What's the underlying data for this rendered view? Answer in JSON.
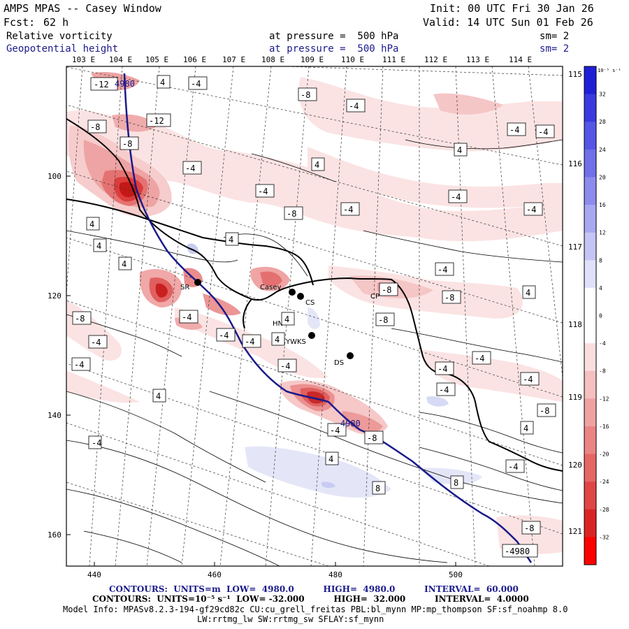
{
  "header": {
    "title": "AMPS MPAS -- Casey Window",
    "init": "Init: 00 UTC Fri 30 Jan 26",
    "fcst_label": "Fcst:",
    "fcst_value": "62 h",
    "valid": "Valid: 14 UTC Sun 01 Feb 26",
    "field1": "Relative vorticity",
    "field1_level": "at pressure =  500 hPa",
    "field1_sm": "sm= 2",
    "field2": "Geopotential height",
    "field2_level": "at pressure =  500 hPa",
    "field2_sm": "sm= 2"
  },
  "map": {
    "lon_labels_top": [
      "103 E",
      "104 E",
      "105 E",
      "106 E",
      "107 E",
      "108 E",
      "109 E",
      "110 E",
      "111 E",
      "112 E",
      "113 E",
      "114 E"
    ],
    "lon_labels_right": [
      "115 E",
      "116 E",
      "117 E",
      "118 E",
      "119 E",
      "120 E",
      "121 E"
    ],
    "y_ticks": [
      "100",
      "120",
      "140",
      "160"
    ],
    "x_ticks": [
      "440",
      "460",
      "480",
      "500"
    ],
    "stations": [
      {
        "id": "SR",
        "label": "SR"
      },
      {
        "id": "Casey",
        "label": "Casey"
      },
      {
        "id": "CS",
        "label": "CS"
      },
      {
        "id": "HN",
        "label": "HN"
      },
      {
        "id": "YWKS",
        "label": "YWKS"
      },
      {
        "id": "DS",
        "label": "DS"
      },
      {
        "id": "CP",
        "label": "CP"
      }
    ],
    "contour_labels": [
      "-12",
      "4980",
      "4",
      "-4",
      "-8",
      "-4",
      "-8",
      "-12",
      "-8",
      "-4",
      "-4",
      "4",
      "-4",
      "4",
      "-4",
      "-8",
      "-4",
      "-4",
      "4",
      "-4",
      "4",
      "4",
      "-4",
      "-8",
      "4",
      "-8",
      "-4",
      "-8",
      "-4",
      "-4",
      "-4",
      "4",
      "-4",
      "-8",
      "-4",
      "-4",
      "-4",
      "4",
      "-4",
      "-4",
      "4",
      "-8",
      "4",
      "4980",
      "-4",
      "-8",
      "4",
      "8",
      "8",
      "-8",
      "-4980",
      "4",
      "-4",
      "-4"
    ]
  },
  "colorbar": {
    "unit_label": "10⁻⁵ s⁻¹",
    "ticks": [
      "32",
      "28",
      "24",
      "20",
      "16",
      "12",
      "8",
      "4",
      "0",
      "-4",
      "-8",
      "-12",
      "-16",
      "-20",
      "-24",
      "-28",
      "-32"
    ],
    "colors": [
      "#1f1fd8",
      "#3a3ae0",
      "#5555e6",
      "#7070ea",
      "#8c8cee",
      "#a8a8f2",
      "#c4c4f6",
      "#e0e0fa",
      "#ffffff",
      "#ffffff",
      "#fadede",
      "#f5c0c0",
      "#f0a2a2",
      "#eb8484",
      "#e66666",
      "#e04646",
      "#da2424",
      "#ff0000"
    ]
  },
  "footer": {
    "line1": "CONTOURS:  UNITS=m  LOW=  4980.0          HIGH=  4980.0          INTERVAL=  60.000",
    "line2": "CONTOURS:  UNITS=10⁻⁵ s⁻¹  LOW= -32.000          HIGH=  32.000          INTERVAL=  4.0000",
    "line3": "Model Info: MPASv8.2.3-194-gf29cd82c CU:cu_grell_freitas PBL:bl_mynn MP:mp_thompson SF:sf_noahmp 8.0",
    "line4": "LW:rrtmg_lw SW:rrtmg_sw SFLAY:sf_mynn"
  }
}
